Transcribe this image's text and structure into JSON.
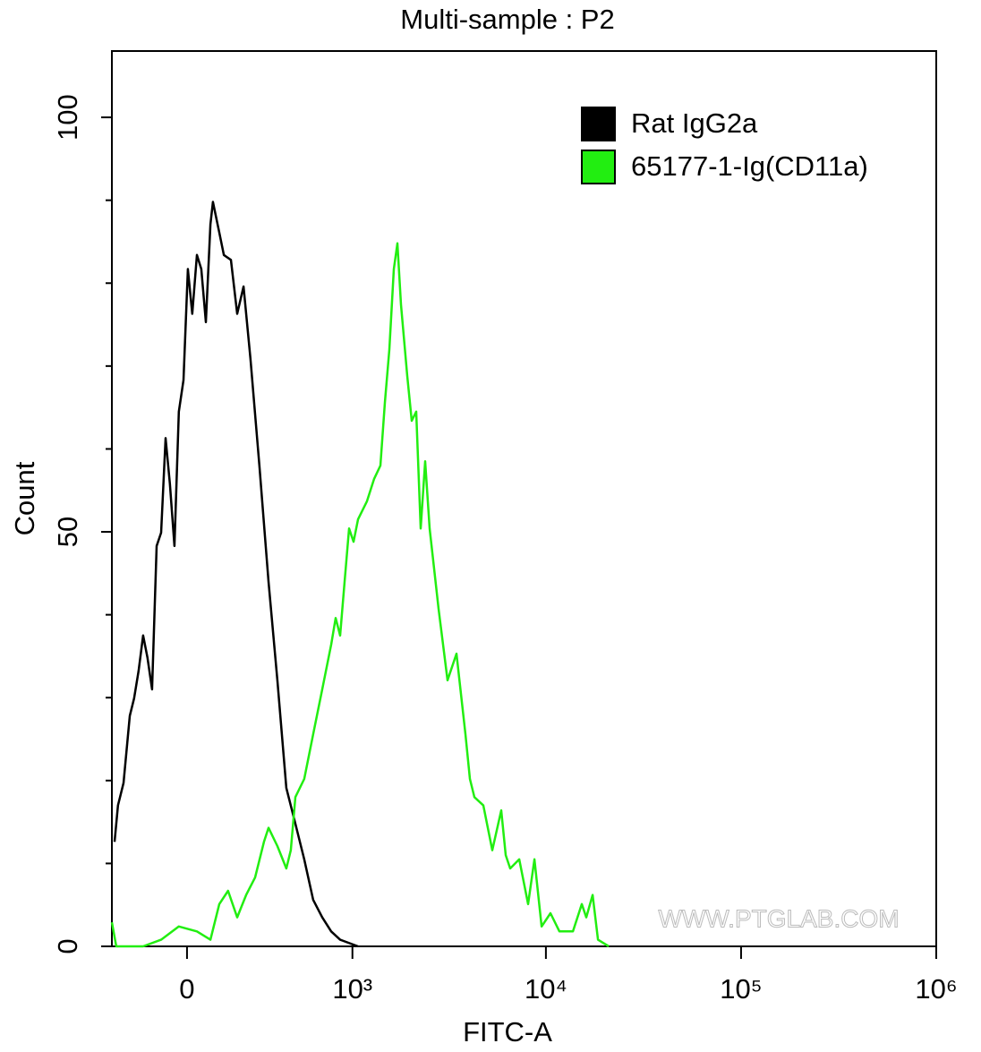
{
  "chart_data": {
    "type": "line",
    "title": "Multi-sample : P2",
    "xlabel": "FITC-A",
    "ylabel": "Count",
    "xscale": "biexponential",
    "xlim": [
      -292,
      1000000
    ],
    "xticks": [
      0,
      {
        "value": 1000,
        "label": "10³"
      },
      {
        "value": 10000,
        "label": "10⁴"
      },
      {
        "value": 100000,
        "label": "10⁵"
      },
      {
        "value": 1000000,
        "label": "10⁶"
      }
    ],
    "ylim": [
      0,
      108
    ],
    "yticks": [
      0,
      50,
      100
    ],
    "yminorticks": [
      10,
      20,
      30,
      40,
      60,
      70,
      80,
      90
    ],
    "legend": "top-right",
    "watermark": "WWW.PTGLAB.COM",
    "series": [
      {
        "name": "Rat IgG2a",
        "color": "#000000",
        "x": [
          -279,
          -263,
          -238,
          -211,
          -193,
          -175,
          -157,
          -140,
          -123,
          -106,
          -90,
          -74,
          -59,
          -43,
          -28,
          -12,
          3,
          18,
          34,
          49,
          65,
          81,
          90,
          113,
          130,
          157,
          182,
          208,
          238,
          279,
          324,
          371,
          423,
          480,
          542,
          610,
          685,
          768,
          859,
          1071
        ],
        "values": [
          12.6,
          17.0,
          19.7,
          27.8,
          29.9,
          33.2,
          37.5,
          34.8,
          31.0,
          48.3,
          49.9,
          61.3,
          55.8,
          48.3,
          64.5,
          68.3,
          81.7,
          76.3,
          83.4,
          81.7,
          75.3,
          87.1,
          89.8,
          86.1,
          83.4,
          82.8,
          76.3,
          79.6,
          70.9,
          58.0,
          44.0,
          32.1,
          19.1,
          14.8,
          10.5,
          5.6,
          3.5,
          1.8,
          0.8,
          0
        ]
      },
      {
        "name": "65177-1-Ig(CD11a)",
        "color": "#22ee11",
        "x": [
          -292,
          -271,
          -157,
          -90,
          -28,
          34,
          81,
          113,
          146,
          182,
          219,
          259,
          301,
          324,
          371,
          423,
          451,
          480,
          542,
          610,
          685,
          768,
          812,
          859,
          908,
          960,
          1014,
          1071,
          1194,
          1303,
          1405,
          1482,
          1564,
          1651,
          1723,
          1798,
          1938,
          2044,
          2157,
          2274,
          2398,
          2529,
          2813,
          3129,
          3477,
          3868,
          4077,
          4298,
          4776,
          5313,
          5904,
          6223,
          6563,
          7296,
          8108,
          8732,
          9503,
          10559,
          11736,
          13752,
          15283,
          16110,
          17354,
          18488,
          20982
        ],
        "values": [
          2.9,
          0,
          0,
          0.8,
          2.4,
          1.8,
          0.8,
          5.1,
          6.7,
          3.5,
          6.2,
          8.3,
          12.6,
          14.3,
          12.1,
          9.4,
          11.6,
          18.0,
          20.2,
          25.6,
          31.0,
          36.4,
          39.6,
          37.5,
          44.0,
          50.4,
          48.8,
          51.5,
          53.7,
          56.4,
          58.0,
          65.6,
          72.0,
          81.7,
          84.8,
          77.4,
          68.8,
          63.4,
          64.5,
          50.4,
          58.5,
          50.4,
          40.7,
          32.1,
          35.3,
          25.6,
          20.2,
          18.0,
          17.0,
          11.6,
          16.4,
          11.0,
          9.4,
          10.5,
          5.1,
          10.5,
          2.4,
          4.0,
          1.8,
          1.8,
          5.1,
          3.5,
          6.2,
          0.8,
          0
        ]
      }
    ]
  }
}
